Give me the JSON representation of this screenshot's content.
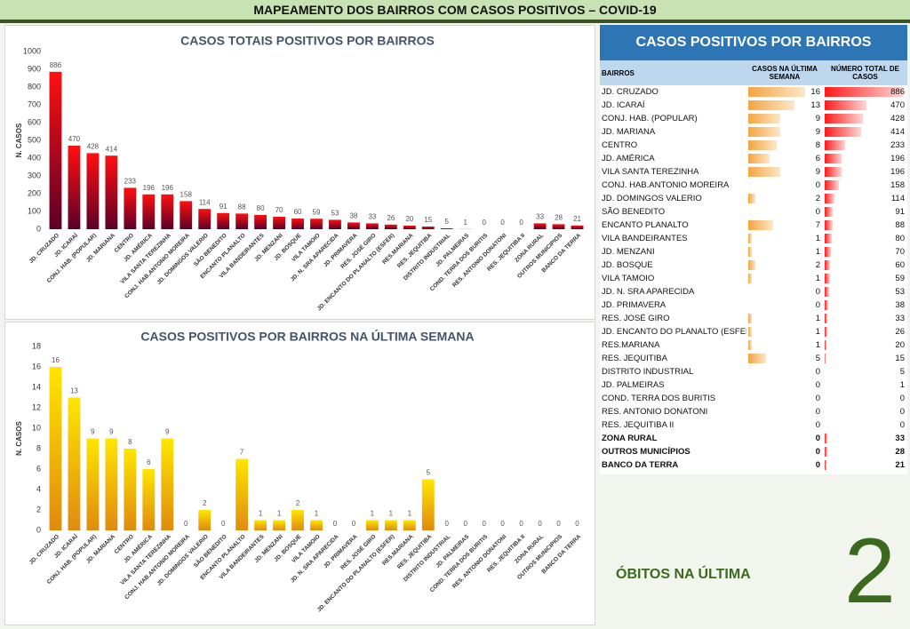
{
  "header": {
    "title": "MAPEAMENTO DOS BAIRROS COM CASOS POSITIVOS – COVID-19"
  },
  "chart_data": [
    {
      "type": "bar",
      "title": "CASOS TOTAIS POSITIVOS POR BAIRROS",
      "y_label": "N. CASOS",
      "categories": [
        "JD. CRUZADO",
        "JD. ICARAÍ",
        "CONJ. HAB. (POPULAR)",
        "JD. MARIANA",
        "CENTRO",
        "JD. AMÉRICA",
        "VILA SANTA TEREZINHA",
        "CONJ. HAB.ANTONIO MOREIRA",
        "JD. DOMINGOS VALERIO",
        "SÃO BENEDITO",
        "ENCANTO PLANALTO",
        "VILA BANDEIRANTES",
        "JD. MENZANI",
        "JD. BOSQUE",
        "VILA TAMOIO",
        "JD. N. SRA APARECIDA",
        "JD. PRIMAVERA",
        "RES. JOSÉ GIRO",
        "JD. ENCANTO DO PLANALTO (ESFER)",
        "RES.MARIANA",
        "RES. JEQUITIBA",
        "DISTRITO INDUSTRIAL",
        "JD. PALMEIRAS",
        "COND. TERRA DOS BURITIS",
        "RES. ANTONIO DONATONI",
        "RES. JEQUITIBA II",
        "ZONA RURAL",
        "OUTROS MUNICIPIOS",
        "BANCO DA TERRA"
      ],
      "values": [
        886,
        470,
        428,
        414,
        233,
        196,
        196,
        158,
        114,
        91,
        88,
        80,
        70,
        60,
        59,
        53,
        38,
        33,
        26,
        20,
        15,
        5,
        1,
        0,
        0,
        0,
        33,
        28,
        21
      ],
      "ylim": [
        0,
        1000
      ],
      "yticks": [
        0,
        100,
        200,
        300,
        400,
        500,
        600,
        700,
        800,
        900,
        1000
      ],
      "colors": [
        "#ff1010",
        "#5a0028"
      ]
    },
    {
      "type": "bar",
      "title": "CASOS POSITIVOS POR BAIRROS NA ÚLTIMA SEMANA",
      "y_label": "N. CASOS",
      "categories": [
        "JD. CRUZADO",
        "JD. ICARAÍ",
        "CONJ. HAB. (POPULAR)",
        "JD. MARIANA",
        "CENTRO",
        "JD. AMÉRICA",
        "VILA SANTA TEREZINHA",
        "CONJ. HAB.ANTONIO MOREIRA",
        "JD. DOMINGOS VALERIO",
        "SÃO BENEDITO",
        "ENCANTO PLANALTO",
        "VILA BANDEIRANTES",
        "JD. MENZANI",
        "JD. BOSQUE",
        "VILA TAMOIO",
        "JD. N. SRA APARECIDA",
        "JD. PRIMAVERA",
        "RES. JOSÉ GIRO",
        "JD. ENCANTO DO PLANALTO (ESFER)",
        "RES.MARIANA",
        "RES. JEQUITIBA",
        "DISTRITO INDUSTRIAL",
        "JD. PALMEIRAS",
        "COND. TERRA DOS BURITIS",
        "RES. ANTONIO DONATONI",
        "RES. JEQUITIBA II",
        "ZONA RURAL",
        "OUTROS MUNICIPIOS",
        "BANCO DA TERRA"
      ],
      "values": [
        16,
        13,
        9,
        9,
        8,
        6,
        9,
        0,
        2,
        0,
        7,
        1,
        1,
        2,
        1,
        0,
        0,
        1,
        1,
        1,
        5,
        0,
        0,
        0,
        0,
        0,
        0,
        0,
        0
      ],
      "ylim": [
        0,
        18
      ],
      "yticks": [
        0,
        2,
        4,
        6,
        8,
        10,
        12,
        14,
        16,
        18
      ],
      "colors": [
        "#ffe600",
        "#e08a10"
      ]
    }
  ],
  "table": {
    "title": "CASOS POSITIVOS POR BAIRROS",
    "columns": [
      "BAIRROS",
      "CASOS NA ÚLTIMA SEMANA",
      "NÚMERO TOTAL DE CASOS"
    ],
    "rows": [
      [
        "JD. CRUZADO",
        16,
        886
      ],
      [
        "JD. ICARAÍ",
        13,
        470
      ],
      [
        "CONJ. HAB. (POPULAR)",
        9,
        428
      ],
      [
        "JD. MARIANA",
        9,
        414
      ],
      [
        "CENTRO",
        8,
        233
      ],
      [
        "JD. AMÉRICA",
        6,
        196
      ],
      [
        "VILA SANTA TEREZINHA",
        9,
        196
      ],
      [
        "CONJ. HAB.ANTONIO MOREIRA",
        0,
        158
      ],
      [
        "JD. DOMINGOS VALERIO",
        2,
        114
      ],
      [
        "SÃO BENEDITO",
        0,
        91
      ],
      [
        "ENCANTO PLANALTO",
        7,
        88
      ],
      [
        "VILA BANDEIRANTES",
        1,
        80
      ],
      [
        "JD. MENZANI",
        1,
        70
      ],
      [
        "JD. BOSQUE",
        2,
        60
      ],
      [
        "VILA TAMOIO",
        1,
        59
      ],
      [
        "JD. N. SRA APARECIDA",
        0,
        53
      ],
      [
        "JD. PRIMAVERA",
        0,
        38
      ],
      [
        "RES. JOSÉ GIRO",
        1,
        33
      ],
      [
        "JD. ENCANTO DO PLANALTO (ESFER",
        1,
        26
      ],
      [
        "RES.MARIANA",
        1,
        20
      ],
      [
        "RES. JEQUITIBA",
        5,
        15
      ],
      [
        "DISTRITO INDUSTRIAL",
        0,
        5
      ],
      [
        "JD. PALMEIRAS",
        0,
        1
      ],
      [
        "COND. TERRA DOS BURITIS",
        0,
        0
      ],
      [
        "RES. ANTONIO DONATONI",
        0,
        0
      ],
      [
        "RES. JEQUITIBA II",
        0,
        0
      ],
      [
        "ZONA RURAL",
        0,
        33
      ],
      [
        "OUTROS MUNICÍPIOS",
        0,
        28
      ],
      [
        "BANCO DA TERRA",
        0,
        21
      ]
    ]
  },
  "deaths": {
    "label": "ÓBITOS NA ÚLTIMA",
    "value": 2
  }
}
